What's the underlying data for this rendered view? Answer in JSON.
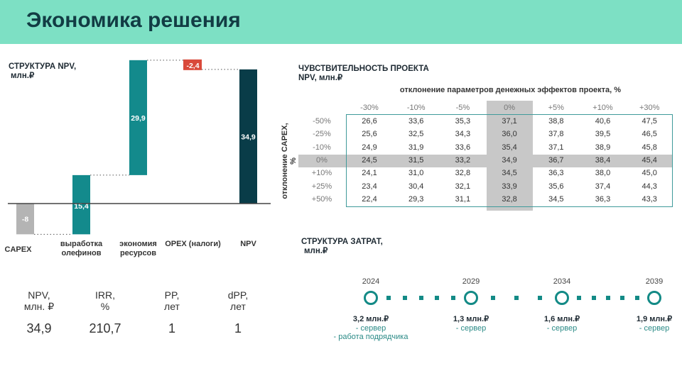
{
  "title": "Экономика решения",
  "npv_structure": {
    "title": "СТРУКТУРА NPV,",
    "unit": "млн.₽",
    "bars": [
      {
        "label": "CAPEX",
        "value": -8,
        "display": "-8",
        "type": "neg-gray"
      },
      {
        "label": "выработка олефинов",
        "value": 15.4,
        "display": "15,4",
        "type": "pos"
      },
      {
        "label": "экономия ресурсов",
        "value": 29.9,
        "display": "29,9",
        "type": "pos"
      },
      {
        "label": "OPEX (налоги)",
        "value": -2.4,
        "display": "-2,4",
        "type": "neg-red"
      },
      {
        "label": "NPV",
        "value": 34.9,
        "display": "34,9",
        "type": "total"
      }
    ],
    "colors": {
      "pos": "#138a8c",
      "total": "#093c48",
      "neg-gray": "#b4b4b4",
      "neg-red": "#d9493a"
    }
  },
  "metrics": [
    {
      "label": "NPV,\nмлн. ₽",
      "value": "34,9"
    },
    {
      "label": "IRR,\n%",
      "value": "210,7"
    },
    {
      "label": "PP,\nлет",
      "value": "1"
    },
    {
      "label": "dPP,\nлет",
      "value": "1"
    }
  ],
  "sensitivity": {
    "title": "ЧУВСТВИТЕЛЬНОСТЬ ПРОЕКТА",
    "unit": "NPV, млн.₽",
    "col_title": "отклонение параметров денежных эффектов проекта, %",
    "row_title": "отклонение CAPEX, %",
    "cols": [
      "-30%",
      "-10%",
      "-5%",
      "0%",
      "+5%",
      "+10%",
      "+30%"
    ],
    "rows": [
      {
        "label": "-50%",
        "values": [
          "26,6",
          "33,6",
          "35,3",
          "37,1",
          "38,8",
          "40,6",
          "47,5"
        ]
      },
      {
        "label": "-25%",
        "values": [
          "25,6",
          "32,5",
          "34,3",
          "36,0",
          "37,8",
          "39,5",
          "46,5"
        ]
      },
      {
        "label": "-10%",
        "values": [
          "24,9",
          "31,9",
          "33,6",
          "35,4",
          "37,1",
          "38,9",
          "45,8"
        ]
      },
      {
        "label": "0%",
        "values": [
          "24,5",
          "31,5",
          "33,2",
          "34,9",
          "36,7",
          "38,4",
          "45,4"
        ]
      },
      {
        "label": "+10%",
        "values": [
          "24,1",
          "31,0",
          "32,8",
          "34,5",
          "36,3",
          "38,0",
          "45,0"
        ]
      },
      {
        "label": "+25%",
        "values": [
          "23,4",
          "30,4",
          "32,1",
          "33,9",
          "35,6",
          "37,4",
          "44,3"
        ]
      },
      {
        "label": "+50%",
        "values": [
          "22,4",
          "29,3",
          "31,1",
          "32,8",
          "34,5",
          "36,3",
          "43,3"
        ]
      }
    ]
  },
  "costs": {
    "title": "СТРУКТУРА ЗАТРАТ,",
    "unit": "млн.₽",
    "points": [
      {
        "year": "2024",
        "amount": "3,2 млн.₽",
        "items": [
          "- сервер",
          "- работа подрядчика"
        ]
      },
      {
        "year": "2029",
        "amount": "1,3 млн.₽",
        "items": [
          "- сервер"
        ]
      },
      {
        "year": "2034",
        "amount": "1,6 млн.₽",
        "items": [
          "- сервер"
        ]
      },
      {
        "year": "2039",
        "amount": "1,9 млн.₽",
        "items": [
          "- сервер"
        ]
      }
    ]
  }
}
